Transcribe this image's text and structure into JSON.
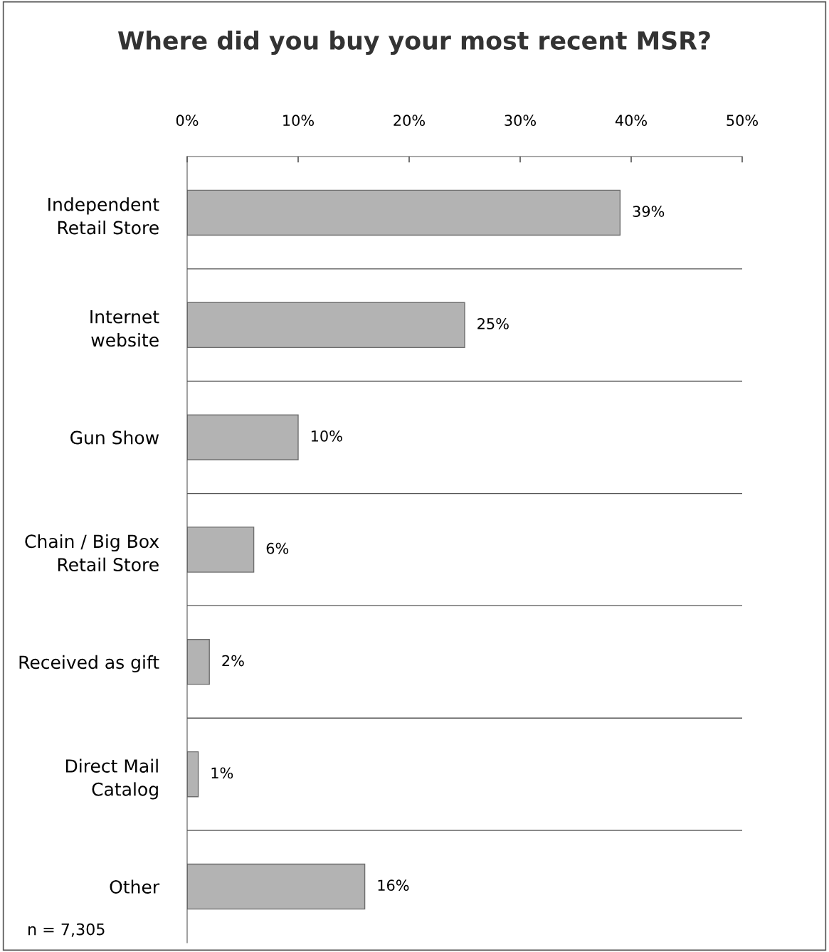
{
  "chart_data": {
    "type": "bar",
    "orientation": "horizontal",
    "title": "Where did you buy your most recent MSR?",
    "categories": [
      "Independent\nRetail Store",
      "Internet\nwebsite",
      "Gun Show",
      "Chain / Big Box\nRetail Store",
      "Received as gift",
      "Direct Mail\nCatalog",
      "Other"
    ],
    "values": [
      39,
      25,
      10,
      6,
      2,
      1,
      16
    ],
    "color": "#b3b3b3",
    "xlim": [
      0,
      50
    ],
    "xticks": [
      {
        "value": 0,
        "label": "0%"
      },
      {
        "value": 10,
        "label": "10%"
      },
      {
        "value": 20,
        "label": "20%"
      },
      {
        "value": 30,
        "label": "30%"
      },
      {
        "value": 40,
        "label": "40%"
      },
      {
        "value": 50,
        "label": "50%"
      }
    ],
    "value_labels": [
      "39%",
      "25%",
      "10%",
      "6%",
      "2%",
      "1%",
      "16%"
    ],
    "grid": "y",
    "annotations": [
      "n = 7,305"
    ]
  }
}
